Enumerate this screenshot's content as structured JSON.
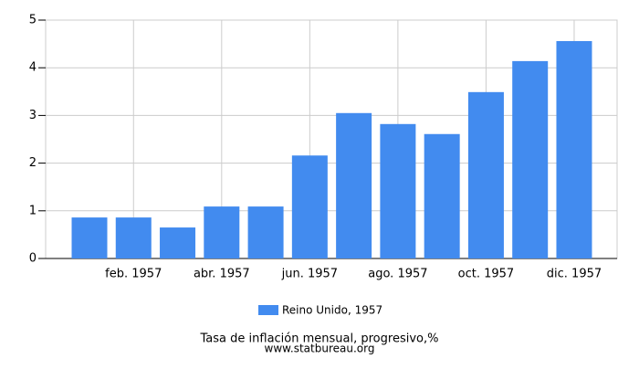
{
  "chart_data": {
    "type": "bar",
    "categories": [
      null,
      "feb. 1957",
      null,
      "abr. 1957",
      null,
      "jun. 1957",
      null,
      "ago. 1957",
      null,
      "oct. 1957",
      null,
      "dic. 1957"
    ],
    "series": [
      {
        "name": "Reino Unido, 1957",
        "color": "#428bef",
        "values": [
          0.86,
          0.86,
          0.65,
          1.09,
          1.09,
          2.16,
          3.05,
          2.82,
          2.61,
          3.49,
          4.14,
          4.56
        ]
      }
    ],
    "ylim": [
      0,
      5
    ],
    "yticks": [
      0,
      1,
      2,
      3,
      4,
      5
    ],
    "grid": true,
    "footer": [
      "Tasa de inflación mensual, progresivo,%",
      "www.statbureau.org"
    ]
  }
}
